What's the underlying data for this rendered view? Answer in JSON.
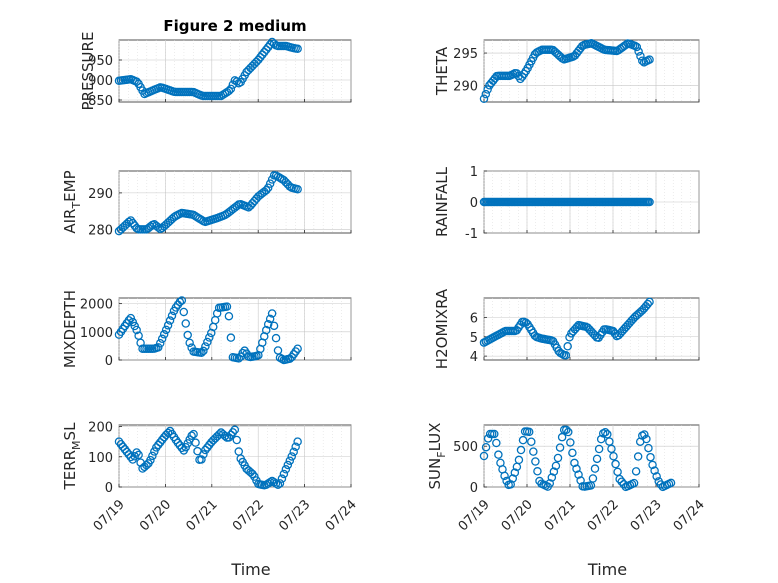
{
  "chart_data": [
    {
      "type": "scatter",
      "id": "pressure",
      "title": "Figure 2 medium",
      "ylabel": "PRESSURE",
      "xlabel": "",
      "xlim": [
        0,
        5
      ],
      "ylim": [
        845,
        1000
      ],
      "yticks": [
        850,
        900,
        950
      ],
      "ytick_labels": [
        "850",
        "900",
        "950"
      ],
      "grid": true,
      "keypoints": [
        [
          0.0,
          898
        ],
        [
          0.25,
          902
        ],
        [
          0.4,
          895
        ],
        [
          0.55,
          865
        ],
        [
          0.75,
          875
        ],
        [
          0.9,
          882
        ],
        [
          1.2,
          870
        ],
        [
          1.6,
          870
        ],
        [
          1.8,
          860
        ],
        [
          2.2,
          860
        ],
        [
          2.4,
          875
        ],
        [
          2.5,
          900
        ],
        [
          2.6,
          890
        ],
        [
          2.75,
          920
        ],
        [
          3.0,
          950
        ],
        [
          3.2,
          980
        ],
        [
          3.3,
          995
        ],
        [
          3.4,
          985
        ],
        [
          3.6,
          985
        ],
        [
          3.75,
          980
        ],
        [
          3.85,
          978
        ]
      ]
    },
    {
      "type": "scatter",
      "id": "theta",
      "ylabel": "THETA",
      "xlabel": "",
      "xlim": [
        0,
        5
      ],
      "ylim": [
        287.5,
        297
      ],
      "yticks": [
        290,
        295
      ],
      "ytick_labels": [
        "290",
        "295"
      ],
      "grid": true,
      "keypoints": [
        [
          0.0,
          288.0
        ],
        [
          0.12,
          290.0
        ],
        [
          0.3,
          291.5
        ],
        [
          0.6,
          291.5
        ],
        [
          0.75,
          292.0
        ],
        [
          0.85,
          291.0
        ],
        [
          1.0,
          292.5
        ],
        [
          1.2,
          295.0
        ],
        [
          1.35,
          295.5
        ],
        [
          1.6,
          295.5
        ],
        [
          1.85,
          294.0
        ],
        [
          2.1,
          294.5
        ],
        [
          2.3,
          296.2
        ],
        [
          2.5,
          296.5
        ],
        [
          2.8,
          295.5
        ],
        [
          3.1,
          295.3
        ],
        [
          3.35,
          296.5
        ],
        [
          3.55,
          296.0
        ],
        [
          3.7,
          293.5
        ],
        [
          3.85,
          294.0
        ]
      ]
    },
    {
      "type": "scatter",
      "id": "airtemp",
      "ylabel": "AIR_TEMP",
      "ylabel_parts": {
        "pre": "AIR",
        "sub": "T",
        "post": "EMP"
      },
      "xlabel": "",
      "xlim": [
        0,
        5
      ],
      "ylim": [
        279,
        296
      ],
      "yticks": [
        280,
        290
      ],
      "ytick_labels": [
        "280",
        "290"
      ],
      "grid": true,
      "keypoints": [
        [
          0.0,
          279.5
        ],
        [
          0.25,
          282.5
        ],
        [
          0.4,
          280.0
        ],
        [
          0.6,
          280.0
        ],
        [
          0.75,
          281.5
        ],
        [
          0.9,
          280.0
        ],
        [
          1.2,
          283.5
        ],
        [
          1.35,
          284.5
        ],
        [
          1.6,
          284.0
        ],
        [
          1.85,
          282.0
        ],
        [
          2.1,
          283.0
        ],
        [
          2.3,
          284.0
        ],
        [
          2.6,
          287.0
        ],
        [
          2.8,
          286.0
        ],
        [
          3.0,
          289.0
        ],
        [
          3.2,
          291.0
        ],
        [
          3.35,
          295.0
        ],
        [
          3.55,
          293.5
        ],
        [
          3.7,
          291.5
        ],
        [
          3.85,
          291.0
        ]
      ]
    },
    {
      "type": "scatter",
      "id": "rainfall",
      "ylabel": "RAINFALL",
      "xlabel": "",
      "xlim": [
        0,
        5
      ],
      "ylim": [
        -1,
        1
      ],
      "yticks": [
        -1,
        0,
        1
      ],
      "ytick_labels": [
        "-1",
        "0",
        "1"
      ],
      "grid": true,
      "keypoints": [
        [
          0.0,
          0
        ],
        [
          3.85,
          0
        ]
      ]
    },
    {
      "type": "scatter",
      "id": "mixdepth",
      "ylabel": "MIXDEPTH",
      "xlabel": "",
      "xlim": [
        0,
        5
      ],
      "ylim": [
        0,
        2200
      ],
      "yticks": [
        0,
        1000,
        2000
      ],
      "ytick_labels": [
        "0",
        "1000",
        "2000"
      ],
      "grid": true,
      "keypoints": [
        [
          0.0,
          900
        ],
        [
          0.25,
          1500
        ],
        [
          0.4,
          1000
        ],
        [
          0.5,
          400
        ],
        [
          0.75,
          400
        ],
        [
          0.85,
          450
        ],
        [
          1.05,
          1200
        ],
        [
          1.2,
          1800
        ],
        [
          1.35,
          2150
        ],
        [
          1.5,
          700
        ],
        [
          1.6,
          300
        ],
        [
          1.8,
          250
        ],
        [
          2.0,
          1000
        ],
        [
          2.15,
          1850
        ],
        [
          2.35,
          1900
        ],
        [
          2.45,
          100
        ],
        [
          2.6,
          50
        ],
        [
          2.7,
          350
        ],
        [
          2.8,
          100
        ],
        [
          3.0,
          150
        ],
        [
          3.2,
          1200
        ],
        [
          3.3,
          1650
        ],
        [
          3.45,
          100
        ],
        [
          3.55,
          0
        ],
        [
          3.7,
          50
        ],
        [
          3.85,
          400
        ]
      ]
    },
    {
      "type": "scatter",
      "id": "h2omixra",
      "ylabel": "H2OMIXRA",
      "xlabel": "",
      "xlim": [
        0,
        5
      ],
      "ylim": [
        3.8,
        7.0
      ],
      "yticks": [
        4,
        5,
        6
      ],
      "ytick_labels": [
        "4",
        "5",
        "6"
      ],
      "grid": true,
      "keypoints": [
        [
          0.0,
          4.7
        ],
        [
          0.25,
          5.0
        ],
        [
          0.5,
          5.3
        ],
        [
          0.75,
          5.3
        ],
        [
          0.9,
          5.8
        ],
        [
          1.0,
          5.7
        ],
        [
          1.2,
          5.0
        ],
        [
          1.35,
          4.9
        ],
        [
          1.6,
          4.8
        ],
        [
          1.75,
          4.2
        ],
        [
          1.9,
          4.0
        ],
        [
          2.0,
          5.1
        ],
        [
          2.2,
          5.6
        ],
        [
          2.4,
          5.5
        ],
        [
          2.65,
          4.9
        ],
        [
          2.8,
          5.4
        ],
        [
          3.0,
          5.3
        ],
        [
          3.1,
          5.0
        ],
        [
          3.3,
          5.5
        ],
        [
          3.5,
          6.0
        ],
        [
          3.7,
          6.4
        ],
        [
          3.85,
          6.8
        ]
      ]
    },
    {
      "type": "scatter",
      "id": "terrmsl",
      "ylabel": "TERR_MSL",
      "ylabel_parts": {
        "pre": "TERR",
        "sub": "M",
        "post": "SL"
      },
      "xlabel": "Time",
      "xlim": [
        0,
        5
      ],
      "ylim": [
        0,
        205
      ],
      "yticks": [
        0,
        100,
        200
      ],
      "ytick_labels": [
        "0",
        "100",
        "200"
      ],
      "xticks": [
        0,
        1,
        2,
        3,
        4,
        5
      ],
      "xtick_labels": [
        "07/19",
        "07/20",
        "07/21",
        "07/22",
        "07/23",
        "07/24"
      ],
      "grid": true,
      "keypoints": [
        [
          0.0,
          150
        ],
        [
          0.15,
          120
        ],
        [
          0.3,
          90
        ],
        [
          0.4,
          120
        ],
        [
          0.5,
          60
        ],
        [
          0.65,
          80
        ],
        [
          0.8,
          130
        ],
        [
          1.0,
          170
        ],
        [
          1.1,
          185
        ],
        [
          1.25,
          150
        ],
        [
          1.4,
          120
        ],
        [
          1.6,
          180
        ],
        [
          1.75,
          80
        ],
        [
          1.85,
          120
        ],
        [
          2.0,
          150
        ],
        [
          2.2,
          180
        ],
        [
          2.35,
          160
        ],
        [
          2.5,
          190
        ],
        [
          2.6,
          100
        ],
        [
          2.75,
          60
        ],
        [
          2.9,
          40
        ],
        [
          3.0,
          10
        ],
        [
          3.15,
          5
        ],
        [
          3.3,
          20
        ],
        [
          3.45,
          5
        ],
        [
          3.6,
          60
        ],
        [
          3.75,
          110
        ],
        [
          3.85,
          150
        ]
      ]
    },
    {
      "type": "scatter",
      "id": "sunflux",
      "ylabel": "SUN_FLUX",
      "ylabel_parts": {
        "pre": "SUN",
        "sub": "F",
        "post": "LUX"
      },
      "xlabel": "Time",
      "xlim": [
        0,
        5
      ],
      "ylim": [
        0,
        760
      ],
      "yticks": [
        0,
        500
      ],
      "ytick_labels": [
        "0",
        "500"
      ],
      "xticks": [
        0,
        1,
        2,
        3,
        4,
        5
      ],
      "xtick_labels": [
        "07/19",
        "07/20",
        "07/21",
        "07/22",
        "07/23",
        "07/24"
      ],
      "grid": true,
      "keypoints": [
        [
          0.0,
          380
        ],
        [
          0.12,
          650
        ],
        [
          0.25,
          650
        ],
        [
          0.35,
          350
        ],
        [
          0.5,
          100
        ],
        [
          0.6,
          0
        ],
        [
          0.8,
          300
        ],
        [
          0.95,
          680
        ],
        [
          1.05,
          680
        ],
        [
          1.2,
          300
        ],
        [
          1.3,
          50
        ],
        [
          1.5,
          0
        ],
        [
          1.7,
          300
        ],
        [
          1.85,
          700
        ],
        [
          1.95,
          700
        ],
        [
          2.1,
          300
        ],
        [
          2.3,
          0
        ],
        [
          2.5,
          20
        ],
        [
          2.75,
          650
        ],
        [
          2.85,
          680
        ],
        [
          3.0,
          400
        ],
        [
          3.15,
          100
        ],
        [
          3.3,
          0
        ],
        [
          3.5,
          50
        ],
        [
          3.65,
          620
        ],
        [
          3.75,
          650
        ],
        [
          3.9,
          300
        ],
        [
          4.05,
          80
        ],
        [
          4.15,
          0
        ],
        [
          4.35,
          50
        ]
      ]
    }
  ]
}
